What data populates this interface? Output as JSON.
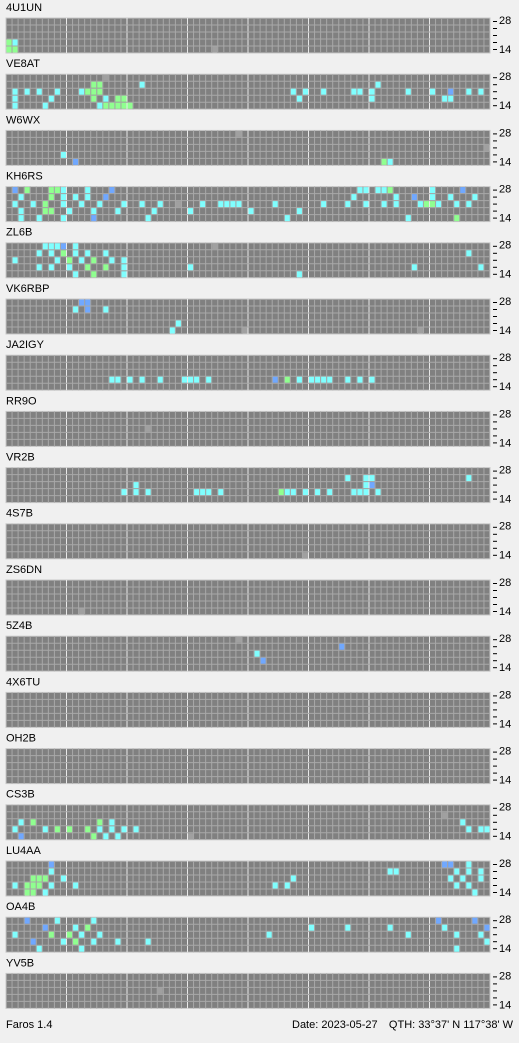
{
  "app": {
    "name": "Faros 1.4",
    "date": "Date: 2023-05-27",
    "qth": "QTH: 33°37' N  117°38' W"
  },
  "band_labels": {
    "top": "28",
    "bottom": "14"
  },
  "palette": [
    "#80ffff",
    "#90ff90",
    "#70a8ff",
    "#a0a0a0"
  ],
  "stations": [
    {
      "name": "4U1UN",
      "spots": [
        [
          0,
          3,
          1
        ],
        [
          1,
          3,
          0
        ],
        [
          0,
          4,
          1
        ],
        [
          1,
          4,
          1
        ],
        [
          34,
          4,
          3
        ]
      ]
    },
    {
      "name": "VE8AT",
      "spots": [
        [
          16,
          0,
          3
        ],
        [
          14,
          1,
          1
        ],
        [
          15,
          1,
          1
        ],
        [
          22,
          1,
          0
        ],
        [
          1,
          2,
          0
        ],
        [
          3,
          2,
          0
        ],
        [
          5,
          2,
          0
        ],
        [
          8,
          2,
          0
        ],
        [
          12,
          2,
          0
        ],
        [
          13,
          2,
          1
        ],
        [
          14,
          2,
          1
        ],
        [
          15,
          2,
          1
        ],
        [
          47,
          2,
          0
        ],
        [
          49,
          2,
          0
        ],
        [
          52,
          2,
          0
        ],
        [
          57,
          2,
          0
        ],
        [
          58,
          2,
          0
        ],
        [
          60,
          2,
          0
        ],
        [
          61,
          1,
          0
        ],
        [
          66,
          2,
          0
        ],
        [
          70,
          2,
          0
        ],
        [
          73,
          2,
          2
        ],
        [
          76,
          2,
          0
        ],
        [
          1,
          3,
          0
        ],
        [
          7,
          3,
          0
        ],
        [
          14,
          3,
          1
        ],
        [
          16,
          3,
          0
        ],
        [
          18,
          3,
          1
        ],
        [
          19,
          3,
          1
        ],
        [
          48,
          3,
          0
        ],
        [
          60,
          3,
          0
        ],
        [
          72,
          3,
          0
        ],
        [
          73,
          3,
          0
        ],
        [
          78,
          2,
          0
        ],
        [
          15,
          4,
          0
        ],
        [
          16,
          4,
          1
        ],
        [
          17,
          4,
          1
        ],
        [
          18,
          4,
          1
        ],
        [
          19,
          4,
          1
        ],
        [
          20,
          4,
          1
        ],
        [
          1,
          4,
          0
        ],
        [
          6,
          4,
          0
        ]
      ]
    },
    {
      "name": "W6WX",
      "spots": [
        [
          38,
          0,
          3
        ],
        [
          79,
          2,
          3
        ],
        [
          9,
          3,
          0
        ],
        [
          11,
          4,
          2
        ],
        [
          62,
          4,
          1
        ],
        [
          63,
          4,
          0
        ]
      ]
    },
    {
      "name": "KH6RS",
      "spots": [
        [
          1,
          0,
          2
        ],
        [
          3,
          0,
          1
        ],
        [
          7,
          0,
          1
        ],
        [
          8,
          0,
          1
        ],
        [
          9,
          0,
          0
        ],
        [
          13,
          0,
          0
        ],
        [
          17,
          0,
          2
        ],
        [
          58,
          0,
          0
        ],
        [
          59,
          0,
          0
        ],
        [
          61,
          0,
          0
        ],
        [
          62,
          0,
          0
        ],
        [
          63,
          0,
          1
        ],
        [
          70,
          0,
          0
        ],
        [
          75,
          0,
          2
        ],
        [
          2,
          1,
          0
        ],
        [
          7,
          1,
          1
        ],
        [
          9,
          1,
          0
        ],
        [
          11,
          1,
          0
        ],
        [
          13,
          1,
          0
        ],
        [
          16,
          1,
          2
        ],
        [
          57,
          1,
          0
        ],
        [
          64,
          1,
          0
        ],
        [
          67,
          1,
          2
        ],
        [
          70,
          1,
          0
        ],
        [
          73,
          1,
          0
        ],
        [
          77,
          1,
          0
        ],
        [
          1,
          2,
          0
        ],
        [
          4,
          2,
          0
        ],
        [
          6,
          2,
          1
        ],
        [
          9,
          2,
          0
        ],
        [
          12,
          2,
          0
        ],
        [
          15,
          2,
          0
        ],
        [
          19,
          2,
          0
        ],
        [
          22,
          2,
          0
        ],
        [
          25,
          2,
          0
        ],
        [
          28,
          2,
          3
        ],
        [
          32,
          2,
          0
        ],
        [
          35,
          2,
          0
        ],
        [
          36,
          2,
          0
        ],
        [
          37,
          2,
          0
        ],
        [
          38,
          2,
          0
        ],
        [
          44,
          2,
          0
        ],
        [
          52,
          2,
          0
        ],
        [
          56,
          2,
          0
        ],
        [
          59,
          2,
          0
        ],
        [
          62,
          2,
          0
        ],
        [
          64,
          2,
          0
        ],
        [
          68,
          2,
          0
        ],
        [
          69,
          2,
          1
        ],
        [
          70,
          2,
          1
        ],
        [
          71,
          2,
          0
        ],
        [
          74,
          2,
          0
        ],
        [
          76,
          2,
          0
        ],
        [
          2,
          3,
          0
        ],
        [
          6,
          3,
          1
        ],
        [
          7,
          3,
          1
        ],
        [
          10,
          3,
          0
        ],
        [
          14,
          3,
          0
        ],
        [
          18,
          3,
          0
        ],
        [
          24,
          3,
          0
        ],
        [
          30,
          3,
          0
        ],
        [
          40,
          3,
          0
        ],
        [
          48,
          3,
          0
        ],
        [
          2,
          4,
          0
        ],
        [
          5,
          4,
          0
        ],
        [
          9,
          4,
          0
        ],
        [
          14,
          4,
          2
        ],
        [
          23,
          4,
          0
        ],
        [
          46,
          4,
          0
        ],
        [
          66,
          4,
          0
        ],
        [
          74,
          4,
          1
        ]
      ]
    },
    {
      "name": "ZL6B",
      "spots": [
        [
          6,
          0,
          0
        ],
        [
          7,
          0,
          0
        ],
        [
          8,
          0,
          0
        ],
        [
          9,
          0,
          2
        ],
        [
          11,
          0,
          0
        ],
        [
          34,
          0,
          3
        ],
        [
          5,
          1,
          0
        ],
        [
          7,
          1,
          0
        ],
        [
          9,
          1,
          1
        ],
        [
          11,
          1,
          0
        ],
        [
          13,
          1,
          0
        ],
        [
          16,
          1,
          0
        ],
        [
          76,
          1,
          0
        ],
        [
          1,
          2,
          0
        ],
        [
          8,
          2,
          0
        ],
        [
          10,
          2,
          1
        ],
        [
          12,
          2,
          0
        ],
        [
          14,
          2,
          1
        ],
        [
          17,
          2,
          0
        ],
        [
          19,
          2,
          0
        ],
        [
          5,
          3,
          0
        ],
        [
          7,
          3,
          0
        ],
        [
          10,
          3,
          0
        ],
        [
          13,
          3,
          1
        ],
        [
          16,
          3,
          1
        ],
        [
          19,
          3,
          0
        ],
        [
          30,
          3,
          0
        ],
        [
          67,
          3,
          0
        ],
        [
          78,
          3,
          0
        ],
        [
          11,
          4,
          0
        ],
        [
          14,
          4,
          1
        ],
        [
          19,
          4,
          0
        ],
        [
          48,
          4,
          0
        ]
      ]
    },
    {
      "name": "VK6RBP",
      "spots": [
        [
          12,
          0,
          2
        ],
        [
          13,
          0,
          2
        ],
        [
          11,
          1,
          0
        ],
        [
          13,
          1,
          2
        ],
        [
          16,
          1,
          0
        ],
        [
          28,
          3,
          0
        ],
        [
          27,
          4,
          0
        ],
        [
          39,
          4,
          3
        ],
        [
          68,
          4,
          3
        ]
      ]
    },
    {
      "name": "JA2IGY",
      "spots": [
        [
          17,
          3,
          0
        ],
        [
          18,
          3,
          0
        ],
        [
          20,
          3,
          0
        ],
        [
          22,
          3,
          0
        ],
        [
          25,
          3,
          0
        ],
        [
          29,
          3,
          0
        ],
        [
          30,
          3,
          0
        ],
        [
          31,
          3,
          0
        ],
        [
          33,
          3,
          0
        ],
        [
          44,
          3,
          2
        ],
        [
          46,
          3,
          1
        ],
        [
          48,
          3,
          0
        ],
        [
          50,
          3,
          0
        ],
        [
          51,
          3,
          0
        ],
        [
          52,
          3,
          0
        ],
        [
          53,
          3,
          0
        ],
        [
          56,
          3,
          0
        ],
        [
          58,
          3,
          0
        ],
        [
          60,
          3,
          0
        ]
      ]
    },
    {
      "name": "RR9O",
      "spots": [
        [
          23,
          2,
          3
        ]
      ]
    },
    {
      "name": "VR2B",
      "spots": [
        [
          21,
          2,
          0
        ],
        [
          56,
          1,
          0
        ],
        [
          59,
          1,
          0
        ],
        [
          60,
          1,
          0
        ],
        [
          76,
          1,
          0
        ],
        [
          19,
          3,
          0
        ],
        [
          21,
          3,
          0
        ],
        [
          23,
          3,
          0
        ],
        [
          31,
          3,
          0
        ],
        [
          32,
          3,
          0
        ],
        [
          33,
          3,
          0
        ],
        [
          35,
          3,
          0
        ],
        [
          45,
          3,
          1
        ],
        [
          46,
          3,
          0
        ],
        [
          47,
          3,
          0
        ],
        [
          49,
          3,
          0
        ],
        [
          51,
          3,
          0
        ],
        [
          53,
          3,
          0
        ],
        [
          57,
          3,
          0
        ],
        [
          58,
          3,
          0
        ],
        [
          59,
          3,
          0
        ],
        [
          61,
          3,
          0
        ],
        [
          59,
          2,
          0
        ],
        [
          60,
          2,
          2
        ]
      ]
    },
    {
      "name": "4S7B",
      "spots": [
        [
          49,
          4,
          3
        ]
      ]
    },
    {
      "name": "ZS6DN",
      "spots": [
        [
          12,
          4,
          3
        ]
      ]
    },
    {
      "name": "5Z4B",
      "spots": [
        [
          38,
          0,
          3
        ],
        [
          55,
          1,
          2
        ],
        [
          41,
          2,
          0
        ],
        [
          42,
          3,
          2
        ]
      ]
    },
    {
      "name": "4X6TU",
      "spots": []
    },
    {
      "name": "OH2B",
      "spots": []
    },
    {
      "name": "CS3B",
      "spots": [
        [
          72,
          1,
          3
        ],
        [
          2,
          2,
          0
        ],
        [
          4,
          2,
          1
        ],
        [
          15,
          2,
          1
        ],
        [
          17,
          2,
          0
        ],
        [
          75,
          2,
          0
        ],
        [
          1,
          3,
          0
        ],
        [
          6,
          3,
          0
        ],
        [
          8,
          3,
          1
        ],
        [
          10,
          3,
          1
        ],
        [
          13,
          3,
          1
        ],
        [
          15,
          3,
          0
        ],
        [
          17,
          3,
          0
        ],
        [
          19,
          3,
          0
        ],
        [
          21,
          3,
          0
        ],
        [
          76,
          3,
          0
        ],
        [
          78,
          3,
          0
        ],
        [
          2,
          4,
          2
        ],
        [
          14,
          4,
          1
        ],
        [
          16,
          4,
          0
        ],
        [
          18,
          4,
          0
        ],
        [
          30,
          4,
          3
        ],
        [
          79,
          3,
          0
        ]
      ]
    },
    {
      "name": "LU4AA",
      "spots": [
        [
          7,
          0,
          2
        ],
        [
          72,
          0,
          2
        ],
        [
          73,
          0,
          2
        ],
        [
          76,
          0,
          0
        ],
        [
          7,
          1,
          0
        ],
        [
          74,
          1,
          0
        ],
        [
          76,
          1,
          0
        ],
        [
          63,
          1,
          0
        ],
        [
          64,
          1,
          0
        ],
        [
          78,
          1,
          0
        ],
        [
          4,
          2,
          1
        ],
        [
          5,
          2,
          1
        ],
        [
          6,
          2,
          1
        ],
        [
          9,
          2,
          0
        ],
        [
          47,
          2,
          0
        ],
        [
          73,
          2,
          0
        ],
        [
          75,
          2,
          0
        ],
        [
          78,
          2,
          0
        ],
        [
          1,
          3,
          0
        ],
        [
          3,
          3,
          1
        ],
        [
          4,
          3,
          1
        ],
        [
          5,
          3,
          1
        ],
        [
          7,
          3,
          0
        ],
        [
          11,
          3,
          0
        ],
        [
          44,
          3,
          0
        ],
        [
          46,
          3,
          0
        ],
        [
          74,
          3,
          0
        ],
        [
          76,
          3,
          0
        ],
        [
          3,
          4,
          1
        ],
        [
          4,
          4,
          1
        ],
        [
          6,
          4,
          0
        ],
        [
          77,
          4,
          0
        ]
      ]
    },
    {
      "name": "OA4B",
      "spots": [
        [
          3,
          0,
          2
        ],
        [
          8,
          0,
          0
        ],
        [
          14,
          0,
          0
        ],
        [
          71,
          0,
          2
        ],
        [
          77,
          0,
          2
        ],
        [
          6,
          1,
          2
        ],
        [
          11,
          1,
          0
        ],
        [
          13,
          1,
          1
        ],
        [
          50,
          1,
          0
        ],
        [
          56,
          1,
          0
        ],
        [
          63,
          1,
          0
        ],
        [
          72,
          1,
          0
        ],
        [
          79,
          1,
          2
        ],
        [
          1,
          2,
          0
        ],
        [
          7,
          2,
          1
        ],
        [
          10,
          2,
          1
        ],
        [
          12,
          2,
          0
        ],
        [
          15,
          2,
          0
        ],
        [
          43,
          2,
          0
        ],
        [
          66,
          2,
          0
        ],
        [
          74,
          2,
          0
        ],
        [
          78,
          2,
          0
        ],
        [
          4,
          3,
          2
        ],
        [
          9,
          3,
          0
        ],
        [
          11,
          3,
          1
        ],
        [
          14,
          3,
          0
        ],
        [
          18,
          3,
          0
        ],
        [
          23,
          3,
          0
        ],
        [
          79,
          3,
          0
        ],
        [
          5,
          4,
          0
        ],
        [
          12,
          4,
          0
        ],
        [
          74,
          4,
          0
        ]
      ]
    },
    {
      "name": "YV5B",
      "spots": [
        [
          25,
          2,
          3
        ]
      ]
    }
  ]
}
